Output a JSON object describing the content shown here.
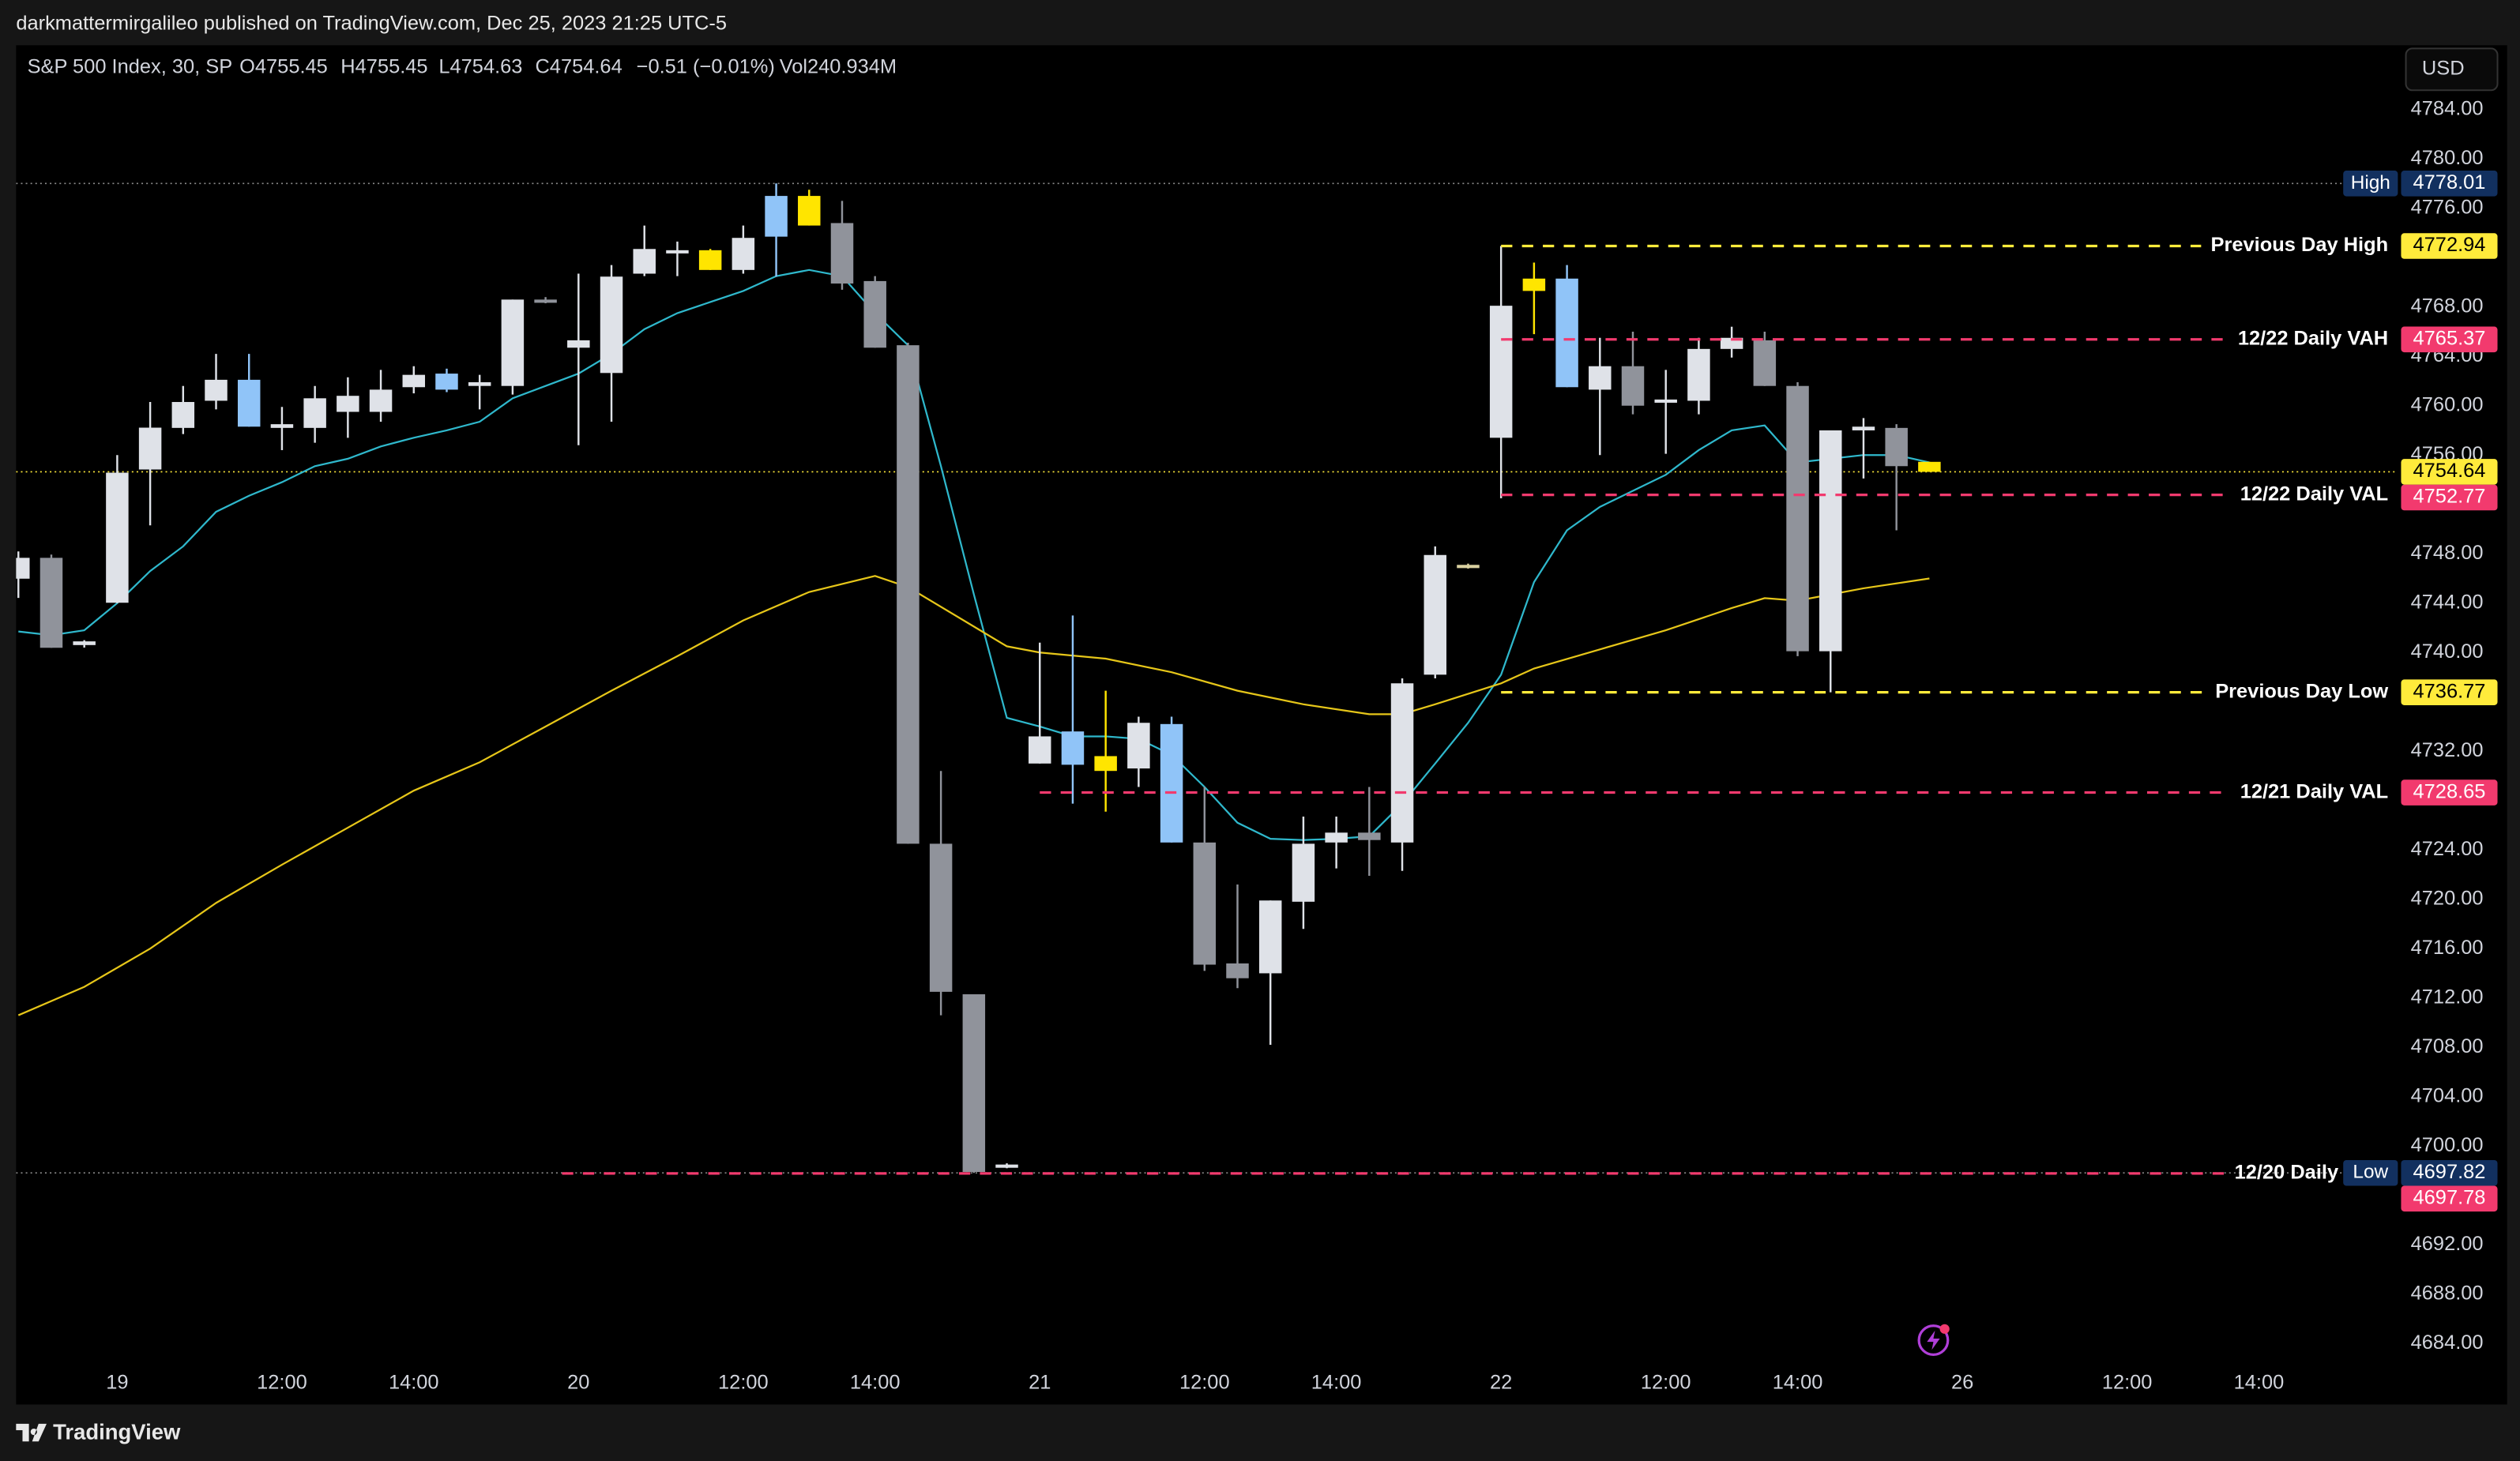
{
  "header": {
    "publisher": "darkmattermirgalileo published on TradingView.com, Dec 25, 2023 21:25 UTC-5"
  },
  "chart_data": {
    "type": "candlestick",
    "symbol": "S&P 500 Index, 30, SP",
    "ohlc_legend": [
      "O4755.45",
      "H4755.45",
      "L4754.63",
      "C4754.64",
      "−0.51 (−0.01%)",
      "Vol240.934M"
    ],
    "currency": "USD",
    "xlim": [
      -3.07,
      69.12
    ],
    "ylim": [
      4682.44,
      4789.21
    ],
    "xticks": [
      {
        "value": 0,
        "label": "19"
      },
      {
        "value": 5,
        "label": "12:00"
      },
      {
        "value": 9,
        "label": "14:00"
      },
      {
        "value": 14,
        "label": "20"
      },
      {
        "value": 19,
        "label": "12:00"
      },
      {
        "value": 23,
        "label": "14:00"
      },
      {
        "value": 28,
        "label": "21"
      },
      {
        "value": 33,
        "label": "12:00"
      },
      {
        "value": 37,
        "label": "14:00"
      },
      {
        "value": 42,
        "label": "22"
      },
      {
        "value": 47,
        "label": "12:00"
      },
      {
        "value": 51,
        "label": "14:00"
      },
      {
        "value": 56,
        "label": "26"
      },
      {
        "value": 61,
        "label": "12:00"
      },
      {
        "value": 65,
        "label": "14:00"
      }
    ],
    "yticks": [
      {
        "value": 4784,
        "label": "4784.00"
      },
      {
        "value": 4780,
        "label": "4780.00"
      },
      {
        "value": 4776,
        "label": "4776.00"
      },
      {
        "value": 4768,
        "label": "4768.00"
      },
      {
        "value": 4764,
        "label": "4764.00"
      },
      {
        "value": 4760,
        "label": "4760.00"
      },
      {
        "value": 4756,
        "label": "4756.00"
      },
      {
        "value": 4748,
        "label": "4748.00"
      },
      {
        "value": 4744,
        "label": "4744.00"
      },
      {
        "value": 4740,
        "label": "4740.00"
      },
      {
        "value": 4732,
        "label": "4732.00"
      },
      {
        "value": 4724,
        "label": "4724.00"
      },
      {
        "value": 4720,
        "label": "4720.00"
      },
      {
        "value": 4716,
        "label": "4716.00"
      },
      {
        "value": 4712,
        "label": "4712.00"
      },
      {
        "value": 4708,
        "label": "4708.00"
      },
      {
        "value": 4704,
        "label": "4704.00"
      },
      {
        "value": 4700,
        "label": "4700.00"
      },
      {
        "value": 4692,
        "label": "4692.00"
      },
      {
        "value": 4688,
        "label": "4688.00"
      },
      {
        "value": 4684,
        "label": "4684.00"
      }
    ],
    "candles": [
      {
        "x": -3,
        "open": 4745.98,
        "high": 4748.19,
        "low": 4744.42,
        "close": 4747.67,
        "color": "#dfe2e8"
      },
      {
        "x": -2,
        "open": 4747.67,
        "high": 4747.93,
        "low": 4740.38,
        "close": 4740.38,
        "color": "#90939b"
      },
      {
        "x": -1,
        "open": 4740.6,
        "high": 4741.0,
        "low": 4740.4,
        "close": 4740.9,
        "color": "#dfe2e8"
      },
      {
        "x": 0,
        "open": 4744.03,
        "high": 4756.0,
        "low": 4744.0,
        "close": 4754.57,
        "color": "#dfe2e8"
      },
      {
        "x": 1,
        "open": 4754.83,
        "high": 4760.3,
        "low": 4750.3,
        "close": 4758.22,
        "color": "#dfe2e8"
      },
      {
        "x": 2,
        "open": 4758.2,
        "high": 4761.6,
        "low": 4757.7,
        "close": 4760.3,
        "color": "#dfe2e8"
      },
      {
        "x": 3,
        "open": 4760.4,
        "high": 4764.2,
        "low": 4759.7,
        "close": 4762.1,
        "color": "#dfe2e8"
      },
      {
        "x": 4,
        "open": 4762.1,
        "high": 4764.2,
        "low": 4758.3,
        "close": 4758.3,
        "color": "#90c4f8"
      },
      {
        "x": 5,
        "open": 4758.2,
        "high": 4759.9,
        "low": 4756.4,
        "close": 4758.5,
        "color": "#dfe2e8"
      },
      {
        "x": 6,
        "open": 4758.2,
        "high": 4761.6,
        "low": 4757.0,
        "close": 4760.6,
        "color": "#dfe2e8"
      },
      {
        "x": 7,
        "open": 4759.5,
        "high": 4762.3,
        "low": 4757.4,
        "close": 4760.8,
        "color": "#dfe2e8"
      },
      {
        "x": 8,
        "open": 4759.5,
        "high": 4762.9,
        "low": 4758.7,
        "close": 4761.3,
        "color": "#dfe2e8"
      },
      {
        "x": 9,
        "open": 4761.5,
        "high": 4763.2,
        "low": 4761.0,
        "close": 4762.5,
        "color": "#dfe2e8"
      },
      {
        "x": 10,
        "open": 4762.6,
        "high": 4763.0,
        "low": 4761.1,
        "close": 4761.3,
        "color": "#90c4f8"
      },
      {
        "x": 11,
        "open": 4761.6,
        "high": 4762.5,
        "low": 4759.7,
        "close": 4761.9,
        "color": "#dfe2e8"
      },
      {
        "x": 12,
        "open": 4761.6,
        "high": 4768.6,
        "low": 4760.9,
        "close": 4768.6,
        "color": "#dfe2e8"
      },
      {
        "x": 13,
        "open": 4768.6,
        "high": 4768.8,
        "low": 4768.3,
        "close": 4768.4,
        "color": "#90939b"
      },
      {
        "x": 14,
        "open": 4764.7,
        "high": 4770.7,
        "low": 4756.8,
        "close": 4765.3,
        "color": "#dfe2e8"
      },
      {
        "x": 15,
        "open": 4762.65,
        "high": 4771.4,
        "low": 4758.7,
        "close": 4770.46,
        "color": "#dfe2e8"
      },
      {
        "x": 16,
        "open": 4770.7,
        "high": 4774.6,
        "low": 4770.5,
        "close": 4772.7,
        "color": "#dfe2e8"
      },
      {
        "x": 17,
        "open": 4772.5,
        "high": 4773.3,
        "low": 4770.5,
        "close": 4772.6,
        "color": "#dfe2e8"
      },
      {
        "x": 18,
        "open": 4772.6,
        "high": 4772.7,
        "low": 4771.0,
        "close": 4771.0,
        "color": "#ffe500"
      },
      {
        "x": 19,
        "open": 4771.0,
        "high": 4774.6,
        "low": 4770.7,
        "close": 4773.6,
        "color": "#dfe2e8"
      },
      {
        "x": 20,
        "open": 4773.7,
        "high": 4778.01,
        "low": 4770.46,
        "close": 4777.0,
        "color": "#90c4f8"
      },
      {
        "x": 21,
        "open": 4777.0,
        "high": 4777.5,
        "low": 4774.6,
        "close": 4774.6,
        "color": "#ffe500"
      },
      {
        "x": 22,
        "open": 4774.8,
        "high": 4776.6,
        "low": 4769.4,
        "close": 4769.9,
        "color": "#90939b"
      },
      {
        "x": 23,
        "open": 4770.1,
        "high": 4770.5,
        "low": 4764.7,
        "close": 4764.7,
        "color": "#90939b"
      },
      {
        "x": 24,
        "open": 4764.9,
        "high": 4765.1,
        "low": 4724.5,
        "close": 4724.5,
        "color": "#90939b"
      },
      {
        "x": 25,
        "open": 4724.5,
        "high": 4730.4,
        "low": 4710.6,
        "close": 4712.5,
        "color": "#90939b"
      },
      {
        "x": 26,
        "open": 4712.3,
        "high": 4712.3,
        "low": 4697.82,
        "close": 4697.9,
        "color": "#90939b"
      },
      {
        "x": 27,
        "open": 4698.3,
        "high": 4698.6,
        "low": 4698.2,
        "close": 4698.5,
        "color": "#dfe2e8"
      },
      {
        "x": 28,
        "open": 4731.0,
        "high": 4740.8,
        "low": 4731.0,
        "close": 4733.2,
        "color": "#dfe2e8"
      },
      {
        "x": 29,
        "open": 4733.6,
        "high": 4743.0,
        "low": 4727.75,
        "close": 4730.9,
        "color": "#90c4f8"
      },
      {
        "x": 30,
        "open": 4731.6,
        "high": 4736.9,
        "low": 4727.1,
        "close": 4730.4,
        "color": "#ffe500"
      },
      {
        "x": 31,
        "open": 4730.6,
        "high": 4734.8,
        "low": 4729.1,
        "close": 4734.3,
        "color": "#dfe2e8"
      },
      {
        "x": 32,
        "open": 4734.2,
        "high": 4734.8,
        "low": 4724.6,
        "close": 4724.6,
        "color": "#90c4f8"
      },
      {
        "x": 33,
        "open": 4724.6,
        "high": 4729.1,
        "low": 4714.2,
        "close": 4714.7,
        "color": "#90939b"
      },
      {
        "x": 34,
        "open": 4714.8,
        "high": 4721.2,
        "low": 4712.8,
        "close": 4713.6,
        "color": "#90939b"
      },
      {
        "x": 35,
        "open": 4714.0,
        "high": 4719.9,
        "low": 4708.2,
        "close": 4719.9,
        "color": "#dfe2e8"
      },
      {
        "x": 36,
        "open": 4719.8,
        "high": 4726.7,
        "low": 4717.6,
        "close": 4724.5,
        "color": "#dfe2e8"
      },
      {
        "x": 37,
        "open": 4724.6,
        "high": 4726.7,
        "low": 4722.5,
        "close": 4725.4,
        "color": "#dfe2e8"
      },
      {
        "x": 38,
        "open": 4725.4,
        "high": 4729.1,
        "low": 4721.9,
        "close": 4724.8,
        "color": "#90939b"
      },
      {
        "x": 39,
        "open": 4724.6,
        "high": 4737.9,
        "low": 4722.3,
        "close": 4737.5,
        "color": "#dfe2e8"
      },
      {
        "x": 40,
        "open": 4738.2,
        "high": 4748.6,
        "low": 4737.9,
        "close": 4747.9,
        "color": "#dfe2e8"
      },
      {
        "x": 41,
        "open": 4746.9,
        "high": 4747.2,
        "low": 4746.8,
        "close": 4747.1,
        "color": "#d9d0a0"
      },
      {
        "x": 42,
        "open": 4757.4,
        "high": 4772.94,
        "low": 4752.5,
        "close": 4768.1,
        "color": "#dfe2e8"
      },
      {
        "x": 43,
        "open": 4770.3,
        "high": 4771.6,
        "low": 4765.8,
        "close": 4769.3,
        "color": "#ffe500"
      },
      {
        "x": 44,
        "open": 4770.3,
        "high": 4771.4,
        "low": 4761.5,
        "close": 4761.5,
        "color": "#90c4f8"
      },
      {
        "x": 45,
        "open": 4761.3,
        "high": 4765.5,
        "low": 4756.0,
        "close": 4763.2,
        "color": "#dfe2e8"
      },
      {
        "x": 46,
        "open": 4763.2,
        "high": 4766.0,
        "low": 4759.3,
        "close": 4760.0,
        "color": "#90939b"
      },
      {
        "x": 47,
        "open": 4760.3,
        "high": 4762.9,
        "low": 4756.1,
        "close": 4760.5,
        "color": "#dfe2e8"
      },
      {
        "x": 48,
        "open": 4760.4,
        "high": 4765.5,
        "low": 4759.3,
        "close": 4764.6,
        "color": "#dfe2e8"
      },
      {
        "x": 49,
        "open": 4764.6,
        "high": 4766.4,
        "low": 4763.9,
        "close": 4765.5,
        "color": "#dfe2e8"
      },
      {
        "x": 50,
        "open": 4765.3,
        "high": 4766.0,
        "low": 4761.6,
        "close": 4761.6,
        "color": "#90939b"
      },
      {
        "x": 51,
        "open": 4761.6,
        "high": 4761.9,
        "low": 4739.7,
        "close": 4740.1,
        "color": "#90939b"
      },
      {
        "x": 52,
        "open": 4740.1,
        "high": 4758.0,
        "low": 4736.77,
        "close": 4758.0,
        "color": "#dfe2e8"
      },
      {
        "x": 53,
        "open": 4758.0,
        "high": 4759.0,
        "low": 4754.1,
        "close": 4758.3,
        "color": "#dfe2e8"
      },
      {
        "x": 54,
        "open": 4758.2,
        "high": 4758.5,
        "low": 4749.9,
        "close": 4755.1,
        "color": "#90939b"
      },
      {
        "x": 55,
        "open": 4755.45,
        "high": 4755.45,
        "low": 4754.63,
        "close": 4754.64,
        "color": "#ffe500"
      }
    ],
    "lines": [
      {
        "color": "#2fb8cc",
        "x": [
          -3,
          -2,
          -1,
          0,
          1,
          2,
          3,
          4,
          5,
          6,
          7,
          8,
          9,
          10,
          11,
          12,
          13,
          14,
          15,
          16,
          17,
          18,
          19,
          20,
          21,
          22,
          23,
          24,
          25,
          26,
          27,
          28,
          29,
          30,
          31,
          32,
          33,
          34,
          35,
          36,
          37,
          38,
          39,
          40,
          41,
          42,
          43,
          44,
          45,
          46,
          47,
          48,
          49,
          50,
          51,
          52,
          53,
          54,
          55
        ],
        "values": [
          4741.7,
          4741.4,
          4741.8,
          4744.0,
          4746.6,
          4748.6,
          4751.4,
          4752.7,
          4753.8,
          4755.1,
          4755.7,
          4756.7,
          4757.4,
          4758.0,
          4758.7,
          4760.6,
          4761.6,
          4762.6,
          4764.2,
          4766.2,
          4767.5,
          4768.4,
          4769.3,
          4770.5,
          4771.0,
          4770.5,
          4767.5,
          4764.9,
          4755.1,
          4744.7,
          4734.7,
          4734.0,
          4733.2,
          4733.2,
          4733.0,
          4731.7,
          4729.1,
          4726.2,
          4724.9,
          4724.8,
          4724.9,
          4725.1,
          4727.75,
          4731.0,
          4734.3,
          4738.2,
          4745.7,
          4749.9,
          4751.8,
          4753.1,
          4754.4,
          4756.4,
          4758.0,
          4758.4,
          4755.4,
          4755.7,
          4756.0,
          4756.0,
          4755.4
        ]
      },
      {
        "color": "#e6c619",
        "x": [
          -3,
          -1,
          1,
          3,
          5,
          7,
          9,
          11,
          13,
          15,
          17,
          19,
          21,
          23,
          24,
          26,
          27,
          28,
          30,
          32,
          34,
          36,
          38,
          39,
          40,
          42,
          43,
          45,
          47,
          49,
          50,
          51,
          52,
          53,
          55
        ],
        "values": [
          4710.6,
          4712.9,
          4716.0,
          4719.7,
          4722.8,
          4725.8,
          4728.8,
          4731.1,
          4734.0,
          4736.9,
          4739.7,
          4742.6,
          4744.9,
          4746.2,
          4745.3,
          4742.1,
          4740.5,
          4740.0,
          4739.5,
          4738.4,
          4736.9,
          4735.8,
          4735.0,
          4735.0,
          4735.8,
          4737.5,
          4738.7,
          4740.25,
          4741.8,
          4743.6,
          4744.4,
          4744.2,
          4744.7,
          4745.2,
          4746.0
        ]
      }
    ],
    "levels": [
      {
        "label": "Previous Day High",
        "value": 4772.94,
        "color": "#ffeb3b",
        "text_color": "#000000",
        "start": 42
      },
      {
        "label": "12/22 Daily VAH",
        "value": 4765.37,
        "color": "#f23a6e",
        "text_color": "#ffffff",
        "start": 42
      },
      {
        "label": "12/22 Daily VAL",
        "value": 4752.77,
        "color": "#f23a6e",
        "text_color": "#ffffff",
        "start": 42
      },
      {
        "label": "Previous Day Low",
        "value": 4736.77,
        "color": "#ffeb3b",
        "text_color": "#000000",
        "start": 42
      },
      {
        "label": "12/21 Daily VAL",
        "value": 4728.65,
        "color": "#f23a6e",
        "text_color": "#ffffff",
        "start": 28
      },
      {
        "label": "12/20 Daily",
        "value": 4697.78,
        "color": "#f23a6e",
        "text_color": "#ffffff",
        "start": 13.5
      }
    ],
    "extremes": [
      {
        "label": "High",
        "value": 4778.01,
        "color": "#12305f"
      },
      {
        "label": "Low",
        "value": 4697.82,
        "color": "#12305f"
      }
    ],
    "last_price_color": "#ffeb3b"
  },
  "footer": {
    "brand": "TradingView"
  }
}
